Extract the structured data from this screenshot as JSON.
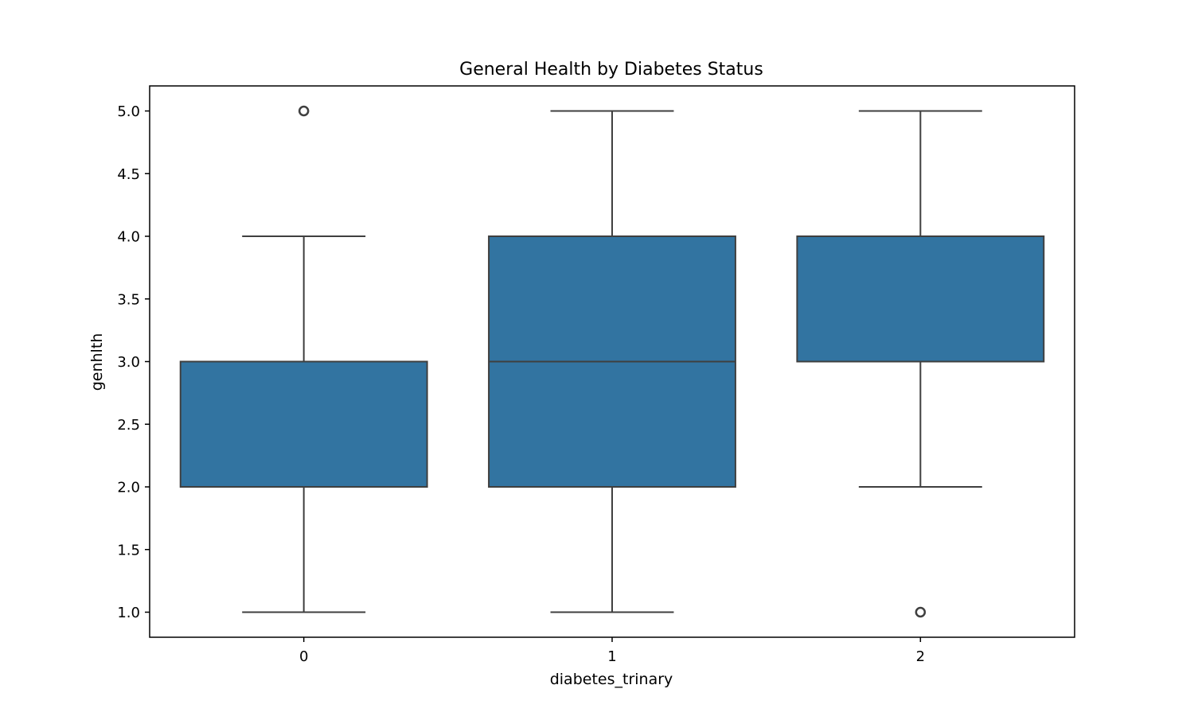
{
  "chart_data": {
    "type": "box",
    "title": "General Health by Diabetes Status",
    "xlabel": "diabetes_trinary",
    "ylabel": "genhlth",
    "categories": [
      "0",
      "1",
      "2"
    ],
    "ylim": [
      0.8,
      5.2
    ],
    "yticks": [
      "1.0",
      "1.5",
      "2.0",
      "2.5",
      "3.0",
      "3.5",
      "4.0",
      "4.5",
      "5.0"
    ],
    "grid": false,
    "box_color": "#3274a1",
    "line_color": "#3f3f3f",
    "boxes": [
      {
        "category": "0",
        "whisker_low": 1.0,
        "q1": 2.0,
        "median": 2.0,
        "q3": 3.0,
        "whisker_high": 4.0,
        "outliers": [
          5.0
        ]
      },
      {
        "category": "1",
        "whisker_low": 1.0,
        "q1": 2.0,
        "median": 3.0,
        "q3": 4.0,
        "whisker_high": 5.0,
        "outliers": []
      },
      {
        "category": "2",
        "whisker_low": 2.0,
        "q1": 3.0,
        "median": 4.0,
        "q3": 4.0,
        "whisker_high": 5.0,
        "outliers": [
          1.0
        ]
      }
    ]
  }
}
